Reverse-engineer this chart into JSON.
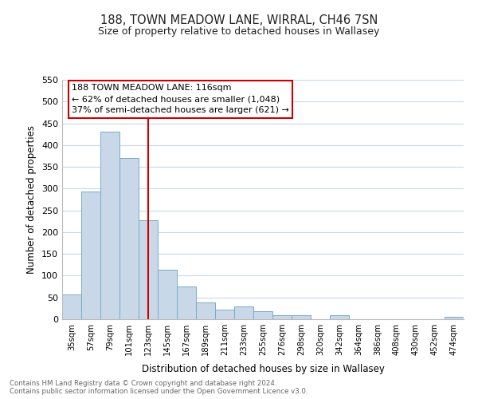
{
  "title": "188, TOWN MEADOW LANE, WIRRAL, CH46 7SN",
  "subtitle": "Size of property relative to detached houses in Wallasey",
  "xlabel": "Distribution of detached houses by size in Wallasey",
  "ylabel": "Number of detached properties",
  "bar_labels": [
    "35sqm",
    "57sqm",
    "79sqm",
    "101sqm",
    "123sqm",
    "145sqm",
    "167sqm",
    "189sqm",
    "211sqm",
    "233sqm",
    "255sqm",
    "276sqm",
    "298sqm",
    "320sqm",
    "342sqm",
    "364sqm",
    "386sqm",
    "408sqm",
    "430sqm",
    "452sqm",
    "474sqm"
  ],
  "bar_values": [
    57,
    293,
    430,
    370,
    228,
    113,
    76,
    38,
    22,
    30,
    18,
    10,
    10,
    0,
    10,
    0,
    0,
    0,
    0,
    0,
    5
  ],
  "bar_color": "#c8d8e8",
  "bar_edge_color": "#7aaac8",
  "vline_x": 4,
  "vline_color": "#cc0000",
  "annotation_line1": "188 TOWN MEADOW LANE: 116sqm",
  "annotation_line2": "← 62% of detached houses are smaller (1,048)",
  "annotation_line3": "37% of semi-detached houses are larger (621) →",
  "annotation_box_color": "#ffffff",
  "annotation_box_edge": "#cc0000",
  "ylim": [
    0,
    550
  ],
  "yticks": [
    0,
    50,
    100,
    150,
    200,
    250,
    300,
    350,
    400,
    450,
    500,
    550
  ],
  "footer_line1": "Contains HM Land Registry data © Crown copyright and database right 2024.",
  "footer_line2": "Contains public sector information licensed under the Open Government Licence v3.0.",
  "bg_color": "#ffffff",
  "grid_color": "#c8d8f0",
  "figwidth": 6.0,
  "figheight": 5.0
}
